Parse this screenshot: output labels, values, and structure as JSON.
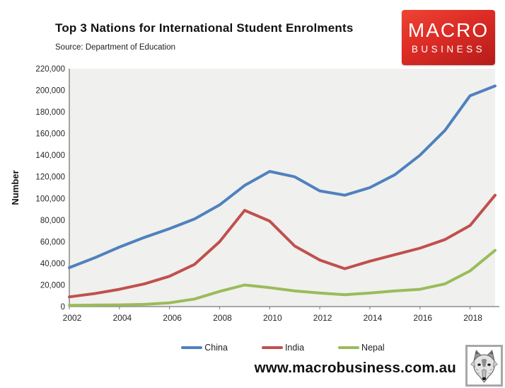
{
  "header": {
    "title": "Top 3 Nations for International Student Enrolments",
    "subtitle": "Source: Department of Education",
    "logo": {
      "line1": "MACRO",
      "line2": "BUSINESS",
      "bg_color": "#d92a24",
      "text_color": "#ffffff"
    }
  },
  "chart_data": {
    "type": "line",
    "title": "Top 3 Nations for International Student Enrolments",
    "xlabel": "",
    "ylabel": "Number",
    "ylim": [
      0,
      220000
    ],
    "ytick_step": 20000,
    "y_tick_labels": [
      "0",
      "20,000",
      "40,000",
      "60,000",
      "80,000",
      "100,000",
      "120,000",
      "140,000",
      "160,000",
      "180,000",
      "200,000",
      "220,000"
    ],
    "x_range": [
      2002,
      2019
    ],
    "x_tick_years": [
      2002,
      2004,
      2006,
      2008,
      2010,
      2012,
      2014,
      2016,
      2018
    ],
    "x_tick_labels": [
      "2002",
      "2004",
      "2006",
      "2008",
      "2010",
      "2012",
      "2014",
      "2016",
      "2018"
    ],
    "years": [
      2002,
      2003,
      2004,
      2005,
      2006,
      2007,
      2008,
      2009,
      2010,
      2011,
      2012,
      2013,
      2014,
      2015,
      2016,
      2017,
      2018,
      2019
    ],
    "grid": false,
    "plot_bg": "#f0f0ee",
    "axis_color": "#8c8c8c",
    "legend_position": "bottom",
    "series": [
      {
        "name": "China",
        "color": "#4F81BD",
        "values": [
          36000,
          45000,
          55000,
          64000,
          72000,
          81000,
          94000,
          112000,
          125000,
          120000,
          107000,
          103000,
          110000,
          122000,
          140000,
          163000,
          195000,
          204000
        ]
      },
      {
        "name": "India",
        "color": "#C0504D",
        "values": [
          9000,
          12000,
          16000,
          21000,
          28000,
          39000,
          60000,
          89000,
          79000,
          56000,
          43000,
          35000,
          42000,
          48000,
          54000,
          62000,
          75000,
          103000
        ]
      },
      {
        "name": "Nepal",
        "color": "#9BBB59",
        "values": [
          1200,
          1400,
          1600,
          2000,
          3500,
          7000,
          14000,
          20000,
          17500,
          14500,
          12500,
          11000,
          12500,
          14500,
          16000,
          21000,
          33000,
          52000
        ]
      }
    ]
  },
  "footer": {
    "website": "www.macrobusiness.com.au",
    "wolf_logo": "wolf-sketch"
  }
}
